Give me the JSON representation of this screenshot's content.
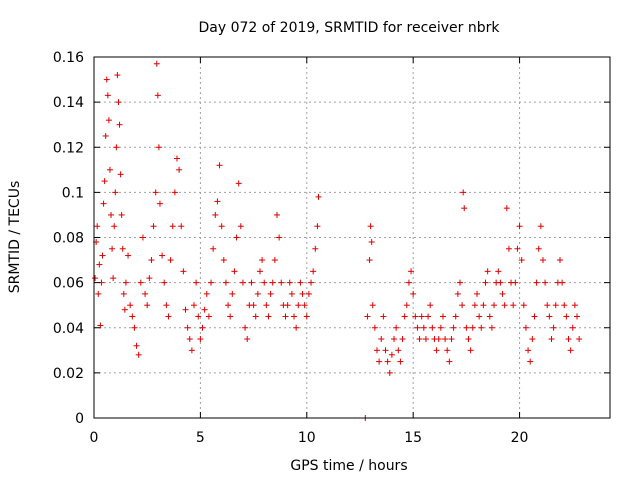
{
  "chart_data": {
    "type": "scatter",
    "title": "Day 072 of 2019, SRMTID for receiver nbrk",
    "xlabel": "GPS time / hours",
    "ylabel": "SRMTID / TECUs",
    "xlim": [
      0,
      24.25
    ],
    "ylim": [
      0,
      0.16
    ],
    "xticks": [
      0,
      5,
      10,
      15,
      20
    ],
    "xtick_labels": [
      "0",
      "5",
      "10",
      "15",
      "20"
    ],
    "yticks": [
      0,
      0.02,
      0.04,
      0.06,
      0.08,
      0.1,
      0.12,
      0.14,
      0.16
    ],
    "ytick_labels": [
      "0",
      "0.02",
      "0.04",
      "0.06",
      "0.08",
      "0.1",
      "0.12",
      "0.14",
      "0.16"
    ],
    "grid": true,
    "marker": "plus",
    "color": "#dd0000",
    "series": [
      {
        "name": "SRMTID",
        "points": [
          [
            0.05,
            0.062
          ],
          [
            0.1,
            0.078
          ],
          [
            0.15,
            0.085
          ],
          [
            0.2,
            0.055
          ],
          [
            0.25,
            0.068
          ],
          [
            0.3,
            0.041
          ],
          [
            0.35,
            0.06
          ],
          [
            0.4,
            0.072
          ],
          [
            0.45,
            0.095
          ],
          [
            0.5,
            0.105
          ],
          [
            0.55,
            0.125
          ],
          [
            0.6,
            0.15
          ],
          [
            0.65,
            0.143
          ],
          [
            0.7,
            0.132
          ],
          [
            0.75,
            0.11
          ],
          [
            0.8,
            0.09
          ],
          [
            0.85,
            0.075
          ],
          [
            0.9,
            0.062
          ],
          [
            0.95,
            0.085
          ],
          [
            1.0,
            0.1
          ],
          [
            1.05,
            0.12
          ],
          [
            1.1,
            0.152
          ],
          [
            1.15,
            0.14
          ],
          [
            1.2,
            0.13
          ],
          [
            1.25,
            0.108
          ],
          [
            1.3,
            0.09
          ],
          [
            1.35,
            0.075
          ],
          [
            1.4,
            0.055
          ],
          [
            1.45,
            0.048
          ],
          [
            1.5,
            0.06
          ],
          [
            1.6,
            0.072
          ],
          [
            1.7,
            0.05
          ],
          [
            1.8,
            0.045
          ],
          [
            1.9,
            0.04
          ],
          [
            2.0,
            0.032
          ],
          [
            2.1,
            0.028
          ],
          [
            2.2,
            0.06
          ],
          [
            2.3,
            0.08
          ],
          [
            2.4,
            0.055
          ],
          [
            2.5,
            0.05
          ],
          [
            2.6,
            0.062
          ],
          [
            2.7,
            0.07
          ],
          [
            2.8,
            0.085
          ],
          [
            2.9,
            0.1
          ],
          [
            2.95,
            0.157
          ],
          [
            3.0,
            0.143
          ],
          [
            3.05,
            0.12
          ],
          [
            3.1,
            0.095
          ],
          [
            3.2,
            0.072
          ],
          [
            3.3,
            0.06
          ],
          [
            3.4,
            0.05
          ],
          [
            3.5,
            0.045
          ],
          [
            3.6,
            0.07
          ],
          [
            3.7,
            0.085
          ],
          [
            3.8,
            0.1
          ],
          [
            3.9,
            0.115
          ],
          [
            4.0,
            0.11
          ],
          [
            4.1,
            0.085
          ],
          [
            4.2,
            0.065
          ],
          [
            4.3,
            0.048
          ],
          [
            4.4,
            0.04
          ],
          [
            4.5,
            0.035
          ],
          [
            4.6,
            0.03
          ],
          [
            4.7,
            0.05
          ],
          [
            4.8,
            0.06
          ],
          [
            4.9,
            0.045
          ],
          [
            5.0,
            0.035
          ],
          [
            5.1,
            0.04
          ],
          [
            5.2,
            0.048
          ],
          [
            5.3,
            0.055
          ],
          [
            5.4,
            0.045
          ],
          [
            5.5,
            0.06
          ],
          [
            5.6,
            0.075
          ],
          [
            5.7,
            0.09
          ],
          [
            5.8,
            0.096
          ],
          [
            5.9,
            0.112
          ],
          [
            6.0,
            0.085
          ],
          [
            6.1,
            0.07
          ],
          [
            6.2,
            0.06
          ],
          [
            6.3,
            0.05
          ],
          [
            6.4,
            0.045
          ],
          [
            6.5,
            0.055
          ],
          [
            6.6,
            0.065
          ],
          [
            6.7,
            0.08
          ],
          [
            6.8,
            0.104
          ],
          [
            6.9,
            0.085
          ],
          [
            7.0,
            0.06
          ],
          [
            7.1,
            0.04
          ],
          [
            7.2,
            0.035
          ],
          [
            7.3,
            0.05
          ],
          [
            7.4,
            0.06
          ],
          [
            7.5,
            0.05
          ],
          [
            7.6,
            0.045
          ],
          [
            7.7,
            0.055
          ],
          [
            7.8,
            0.065
          ],
          [
            7.9,
            0.07
          ],
          [
            8.0,
            0.06
          ],
          [
            8.1,
            0.05
          ],
          [
            8.2,
            0.045
          ],
          [
            8.3,
            0.055
          ],
          [
            8.4,
            0.06
          ],
          [
            8.5,
            0.07
          ],
          [
            8.6,
            0.09
          ],
          [
            8.7,
            0.08
          ],
          [
            8.8,
            0.06
          ],
          [
            8.9,
            0.05
          ],
          [
            9.0,
            0.045
          ],
          [
            9.1,
            0.05
          ],
          [
            9.2,
            0.06
          ],
          [
            9.3,
            0.055
          ],
          [
            9.4,
            0.045
          ],
          [
            9.5,
            0.04
          ],
          [
            9.6,
            0.05
          ],
          [
            9.7,
            0.06
          ],
          [
            9.8,
            0.055
          ],
          [
            9.9,
            0.05
          ],
          [
            10.0,
            0.045
          ],
          [
            10.1,
            0.055
          ],
          [
            10.2,
            0.06
          ],
          [
            10.3,
            0.065
          ],
          [
            10.4,
            0.075
          ],
          [
            10.5,
            0.085
          ],
          [
            10.55,
            0.098
          ],
          [
            12.75,
            0.0
          ],
          [
            12.85,
            0.045
          ],
          [
            12.95,
            0.07
          ],
          [
            13.0,
            0.085
          ],
          [
            13.05,
            0.078
          ],
          [
            13.1,
            0.05
          ],
          [
            13.2,
            0.04
          ],
          [
            13.3,
            0.03
          ],
          [
            13.4,
            0.025
          ],
          [
            13.5,
            0.035
          ],
          [
            13.6,
            0.045
          ],
          [
            13.7,
            0.03
          ],
          [
            13.8,
            0.025
          ],
          [
            13.9,
            0.02
          ],
          [
            14.0,
            0.028
          ],
          [
            14.1,
            0.035
          ],
          [
            14.2,
            0.04
          ],
          [
            14.3,
            0.03
          ],
          [
            14.4,
            0.025
          ],
          [
            14.5,
            0.035
          ],
          [
            14.6,
            0.045
          ],
          [
            14.7,
            0.05
          ],
          [
            14.8,
            0.06
          ],
          [
            14.9,
            0.065
          ],
          [
            15.0,
            0.055
          ],
          [
            15.1,
            0.045
          ],
          [
            15.2,
            0.04
          ],
          [
            15.3,
            0.035
          ],
          [
            15.4,
            0.045
          ],
          [
            15.5,
            0.04
          ],
          [
            15.6,
            0.035
          ],
          [
            15.7,
            0.045
          ],
          [
            15.8,
            0.05
          ],
          [
            15.9,
            0.04
          ],
          [
            16.0,
            0.035
          ],
          [
            16.1,
            0.03
          ],
          [
            16.2,
            0.035
          ],
          [
            16.3,
            0.04
          ],
          [
            16.4,
            0.045
          ],
          [
            16.5,
            0.035
          ],
          [
            16.6,
            0.03
          ],
          [
            16.7,
            0.025
          ],
          [
            16.8,
            0.035
          ],
          [
            16.9,
            0.04
          ],
          [
            17.0,
            0.045
          ],
          [
            17.1,
            0.055
          ],
          [
            17.2,
            0.06
          ],
          [
            17.3,
            0.05
          ],
          [
            17.35,
            0.1
          ],
          [
            17.4,
            0.093
          ],
          [
            17.5,
            0.04
          ],
          [
            17.6,
            0.035
          ],
          [
            17.7,
            0.03
          ],
          [
            17.8,
            0.04
          ],
          [
            17.9,
            0.05
          ],
          [
            18.0,
            0.055
          ],
          [
            18.1,
            0.045
          ],
          [
            18.2,
            0.04
          ],
          [
            18.3,
            0.05
          ],
          [
            18.4,
            0.06
          ],
          [
            18.5,
            0.065
          ],
          [
            18.6,
            0.045
          ],
          [
            18.7,
            0.04
          ],
          [
            18.8,
            0.05
          ],
          [
            18.9,
            0.06
          ],
          [
            19.0,
            0.065
          ],
          [
            19.1,
            0.06
          ],
          [
            19.2,
            0.055
          ],
          [
            19.3,
            0.05
          ],
          [
            19.4,
            0.093
          ],
          [
            19.5,
            0.075
          ],
          [
            19.6,
            0.06
          ],
          [
            19.7,
            0.05
          ],
          [
            19.8,
            0.06
          ],
          [
            19.9,
            0.075
          ],
          [
            20.0,
            0.085
          ],
          [
            20.1,
            0.07
          ],
          [
            20.2,
            0.05
          ],
          [
            20.3,
            0.04
          ],
          [
            20.4,
            0.03
          ],
          [
            20.5,
            0.025
          ],
          [
            20.6,
            0.035
          ],
          [
            20.7,
            0.045
          ],
          [
            20.8,
            0.06
          ],
          [
            20.9,
            0.075
          ],
          [
            21.0,
            0.085
          ],
          [
            21.1,
            0.07
          ],
          [
            21.2,
            0.06
          ],
          [
            21.3,
            0.05
          ],
          [
            21.4,
            0.045
          ],
          [
            21.5,
            0.035
          ],
          [
            21.6,
            0.04
          ],
          [
            21.7,
            0.05
          ],
          [
            21.8,
            0.06
          ],
          [
            21.9,
            0.07
          ],
          [
            22.0,
            0.06
          ],
          [
            22.1,
            0.05
          ],
          [
            22.2,
            0.045
          ],
          [
            22.3,
            0.035
          ],
          [
            22.4,
            0.03
          ],
          [
            22.5,
            0.04
          ],
          [
            22.6,
            0.05
          ],
          [
            22.7,
            0.045
          ],
          [
            22.8,
            0.035
          ]
        ]
      }
    ]
  }
}
